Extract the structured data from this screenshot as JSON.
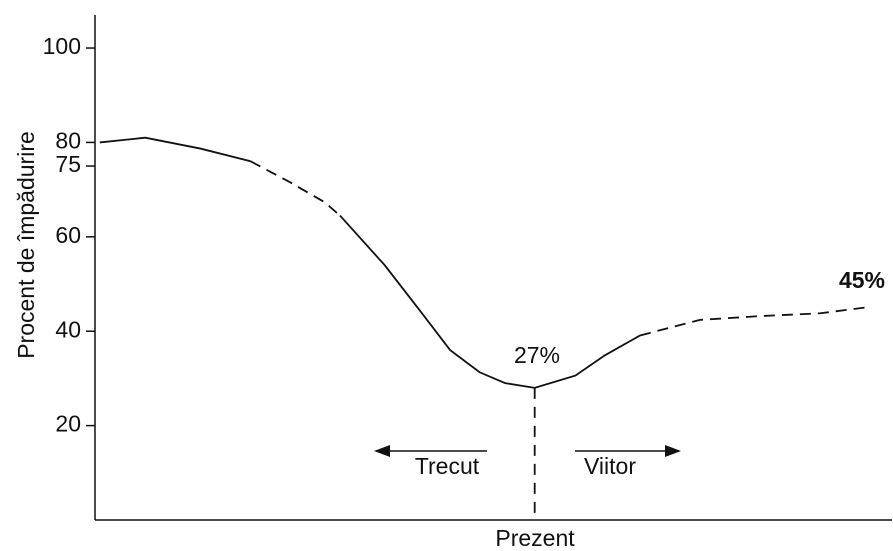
{
  "chart_data": {
    "type": "line",
    "y_label": "Procent de împădurire",
    "x_label": "Prezent",
    "annotations": [
      "27%",
      "45%",
      "Trecut",
      "Viitor"
    ],
    "xlim": [
      0,
      100
    ],
    "ylim": [
      0,
      107
    ],
    "yticks": [
      20,
      40,
      60,
      75,
      80,
      100
    ],
    "color": "#111111",
    "present_x": 55.1,
    "series": [
      {
        "dashed": false,
        "x": [
          0.6,
          6.3,
          13.2,
          19.5
        ],
        "values": [
          80,
          81,
          78.7,
          76
        ]
      },
      {
        "dashed": true,
        "x": [
          19.5,
          24.4,
          28.8,
          30.7
        ],
        "values": [
          76,
          71.6,
          67.3,
          64.5
        ]
      },
      {
        "dashed": false,
        "x": [
          30.7,
          36.3,
          40.7,
          44.5,
          48.2,
          51.4,
          55.1,
          60.2,
          63.9,
          68.3
        ],
        "values": [
          64.5,
          54,
          44.4,
          36,
          31.3,
          29,
          28,
          30.6,
          34.9,
          39.1
        ]
      },
      {
        "dashed": true,
        "x": [
          68.3,
          75.8,
          83.3,
          90.9,
          96.9
        ],
        "values": [
          39.1,
          42.4,
          43.2,
          43.8,
          45.1
        ]
      }
    ]
  }
}
